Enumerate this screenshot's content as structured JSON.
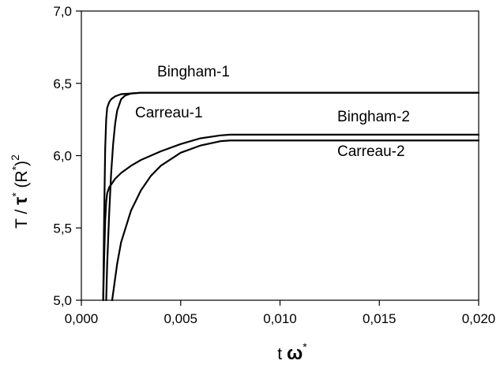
{
  "chart_data": {
    "type": "line",
    "title": "",
    "xlabel": "t ω*",
    "ylabel": "T / τ* (R*)²",
    "xlim": [
      0.0,
      0.02
    ],
    "ylim": [
      5.0,
      7.0
    ],
    "xticks": [
      0.0,
      0.005,
      0.01,
      0.015,
      0.02
    ],
    "xtick_labels": [
      "0,000",
      "0,005",
      "0,010",
      "0,015",
      "0,020"
    ],
    "yticks": [
      5.0,
      5.5,
      6.0,
      6.5,
      7.0
    ],
    "ytick_labels": [
      "5,0",
      "5,5",
      "6,0",
      "6,5",
      "7,0"
    ],
    "grid": false,
    "legend": "none",
    "series": [
      {
        "name": "Bingham-1",
        "label": "Bingham-1",
        "x": [
          0.0011,
          0.00115,
          0.0012,
          0.00125,
          0.0013,
          0.0014,
          0.0015,
          0.0017,
          0.002,
          0.0025,
          0.003,
          0.005,
          0.008,
          0.012,
          0.02
        ],
        "y": [
          5.0,
          5.6,
          6.05,
          6.25,
          6.33,
          6.37,
          6.39,
          6.41,
          6.425,
          6.43,
          6.435,
          6.435,
          6.435,
          6.435,
          6.435
        ]
      },
      {
        "name": "Carreau-1",
        "label": "Carreau-1",
        "x": [
          0.00125,
          0.0013,
          0.0014,
          0.0015,
          0.0016,
          0.0017,
          0.0018,
          0.002,
          0.0022,
          0.0025,
          0.003,
          0.004,
          0.006,
          0.01,
          0.02
        ],
        "y": [
          5.0,
          5.25,
          5.6,
          5.88,
          6.08,
          6.22,
          6.31,
          6.39,
          6.415,
          6.43,
          6.435,
          6.435,
          6.435,
          6.435,
          6.435
        ]
      },
      {
        "name": "Bingham-2",
        "label": "Bingham-2",
        "x": [
          0.0011,
          0.00115,
          0.0012,
          0.00125,
          0.0013,
          0.0014,
          0.0015,
          0.0017,
          0.002,
          0.0025,
          0.003,
          0.004,
          0.005,
          0.006,
          0.007,
          0.0075,
          0.008,
          0.01,
          0.02
        ],
        "y": [
          5.0,
          5.3,
          5.55,
          5.68,
          5.74,
          5.78,
          5.8,
          5.84,
          5.88,
          5.93,
          5.97,
          6.03,
          6.08,
          6.12,
          6.14,
          6.145,
          6.145,
          6.145,
          6.145
        ]
      },
      {
        "name": "Carreau-2",
        "label": "Carreau-2",
        "x": [
          0.00155,
          0.0016,
          0.0018,
          0.002,
          0.0025,
          0.003,
          0.0035,
          0.004,
          0.005,
          0.006,
          0.007,
          0.0075,
          0.008,
          0.01,
          0.02
        ],
        "y": [
          5.0,
          5.05,
          5.25,
          5.4,
          5.62,
          5.76,
          5.86,
          5.93,
          6.02,
          6.07,
          6.1,
          6.105,
          6.105,
          6.105,
          6.105
        ]
      }
    ],
    "annotations": [
      {
        "text": "Bingham-1",
        "series": "Bingham-1"
      },
      {
        "text": "Carreau-1",
        "series": "Carreau-1"
      },
      {
        "text": "Bingham-2",
        "series": "Bingham-2"
      },
      {
        "text": "Carreau-2",
        "series": "Carreau-2"
      }
    ]
  }
}
